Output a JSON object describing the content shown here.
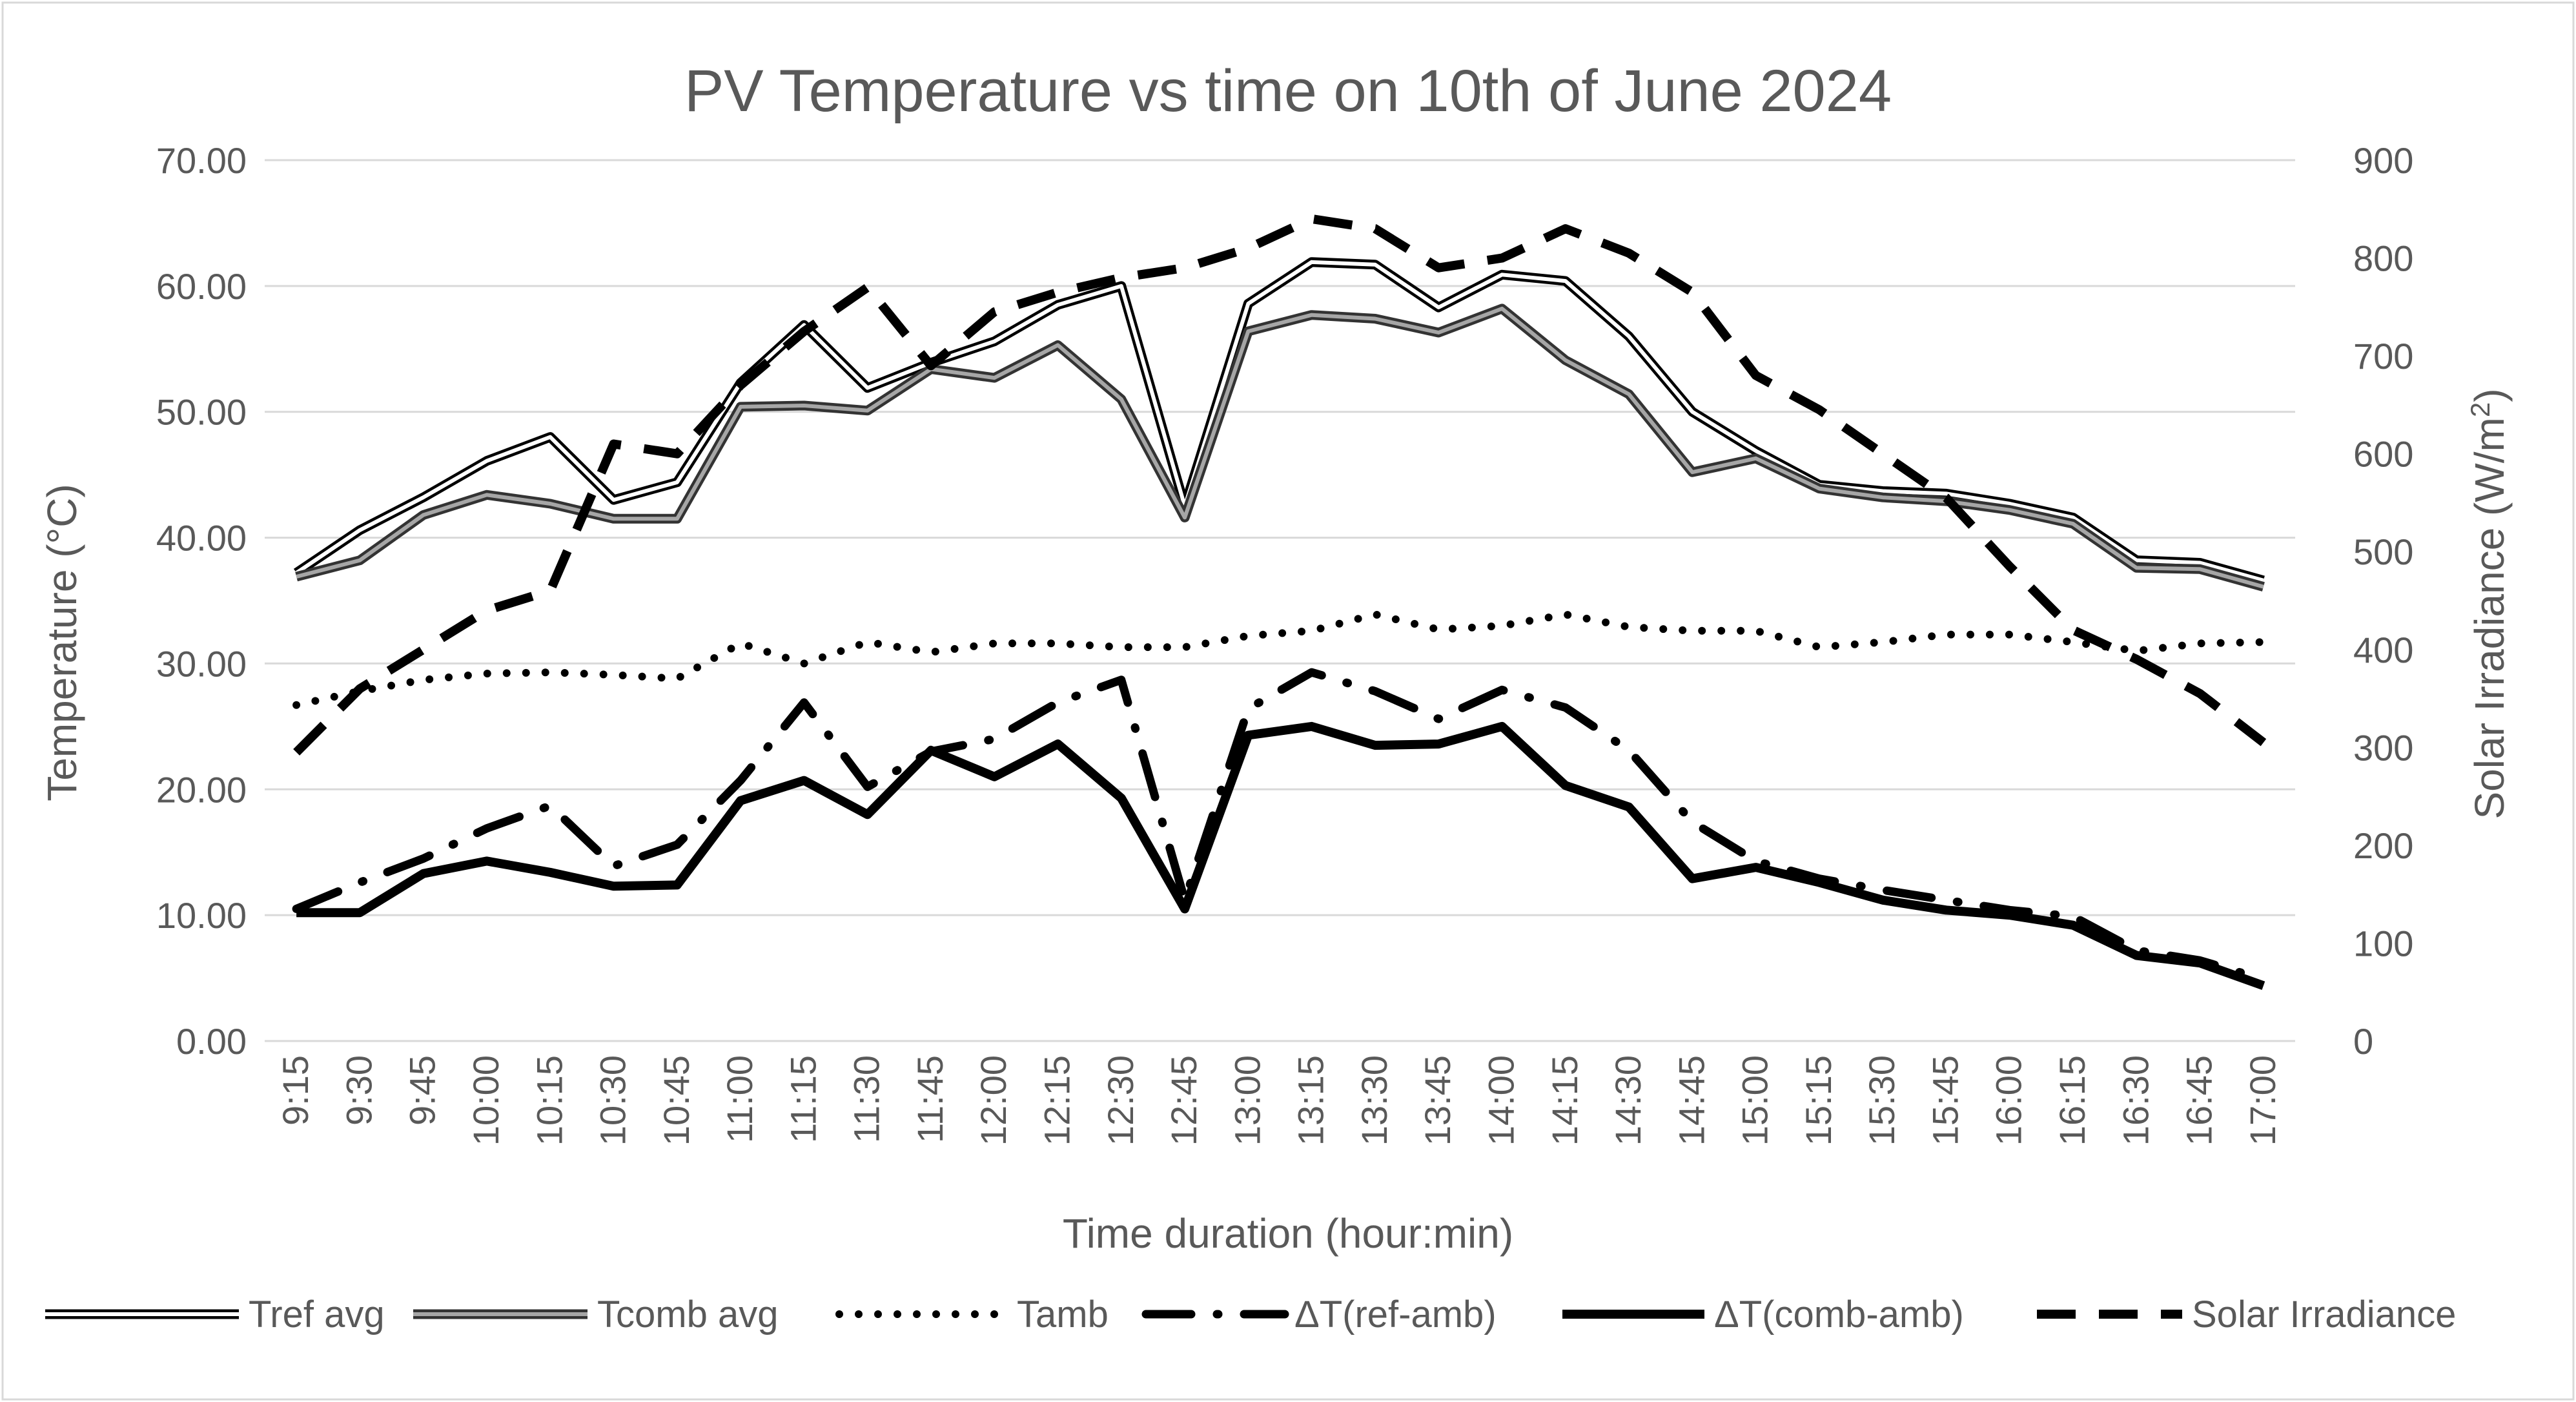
{
  "chart_data": {
    "type": "line",
    "title": "PV Temperature vs time on 10th of June 2024",
    "xlabel": "Time duration (hour:min)",
    "ylabel": "Temperature (°C)",
    "y2label_main": "Solar Irradiance (W/m",
    "y2label_sup": "2",
    "y2label_end": ")",
    "ylim": [
      0,
      70
    ],
    "y2lim": [
      0,
      900
    ],
    "yticks": [
      "0.00",
      "10.00",
      "20.00",
      "30.00",
      "40.00",
      "50.00",
      "60.00",
      "70.00"
    ],
    "y2ticks": [
      "0",
      "100",
      "200",
      "300",
      "400",
      "500",
      "600",
      "700",
      "800",
      "900"
    ],
    "grid": true,
    "legend_position": "bottom",
    "categories": [
      "9:15",
      "9:30",
      "9:45",
      "10:00",
      "10:15",
      "10:30",
      "10:45",
      "11:00",
      "11:15",
      "11:30",
      "11:45",
      "12:00",
      "12:15",
      "12:30",
      "12:45",
      "13:00",
      "13:15",
      "13:30",
      "13:45",
      "14:00",
      "14:15",
      "14:30",
      "14:45",
      "15:00",
      "15:15",
      "15:30",
      "15:45",
      "16:00",
      "16:15",
      "16:30",
      "16:45",
      "17:00"
    ],
    "series": [
      {
        "name": "Tref avg",
        "style": "double",
        "axis": "left",
        "values": [
          37.2,
          40.6,
          43.2,
          46.1,
          48.0,
          43.0,
          44.4,
          52.3,
          56.9,
          51.9,
          53.9,
          55.6,
          58.5,
          60.0,
          42.5,
          58.6,
          61.9,
          61.7,
          58.3,
          60.9,
          60.4,
          56.0,
          50.0,
          46.9,
          44.2,
          43.7,
          43.5,
          42.7,
          41.6,
          38.2,
          38.0,
          36.6
        ]
      },
      {
        "name": "Tcomb avg",
        "style": "double-gray",
        "axis": "left",
        "values": [
          36.9,
          38.2,
          41.8,
          43.4,
          42.7,
          41.5,
          41.5,
          50.4,
          50.5,
          50.1,
          53.4,
          52.7,
          55.3,
          51.0,
          41.6,
          56.4,
          57.7,
          57.4,
          56.3,
          58.2,
          54.1,
          51.4,
          45.2,
          46.3,
          43.9,
          43.2,
          42.9,
          42.2,
          41.1,
          37.6,
          37.5,
          36.1
        ]
      },
      {
        "name": "Tamb",
        "style": "dotted",
        "axis": "left",
        "values": [
          26.7,
          27.8,
          28.7,
          29.2,
          29.3,
          29.1,
          28.8,
          31.6,
          30.0,
          31.7,
          30.9,
          31.6,
          31.6,
          31.3,
          31.3,
          32.2,
          32.6,
          33.9,
          32.7,
          33.0,
          33.9,
          32.9,
          32.6,
          32.6,
          31.3,
          31.7,
          32.3,
          32.3,
          31.7,
          31.0,
          31.6,
          31.7
        ]
      },
      {
        "name": "ΔT(ref-amb)",
        "style": "dash-dot",
        "axis": "left",
        "values": [
          10.5,
          12.6,
          14.5,
          16.9,
          18.7,
          13.9,
          15.6,
          20.7,
          26.9,
          20.2,
          23.0,
          24.0,
          26.9,
          28.7,
          11.2,
          26.4,
          29.3,
          27.8,
          25.6,
          27.9,
          26.5,
          23.1,
          17.4,
          14.3,
          12.9,
          12.0,
          11.2,
          10.4,
          9.9,
          7.2,
          6.4,
          4.9
        ]
      },
      {
        "name": "ΔT(comb-amb)",
        "style": "solid",
        "axis": "left",
        "values": [
          10.2,
          10.2,
          13.3,
          14.3,
          13.4,
          12.3,
          12.4,
          19.1,
          20.7,
          18.0,
          23.1,
          21.0,
          23.6,
          19.3,
          10.5,
          24.3,
          25.0,
          23.5,
          23.6,
          25.0,
          20.3,
          18.6,
          12.9,
          13.8,
          12.6,
          11.2,
          10.4,
          10.0,
          9.2,
          6.8,
          6.2,
          4.4
        ]
      },
      {
        "name": "Solar Irradiance",
        "style": "dashed",
        "axis": "right",
        "values": [
          295,
          360,
          400,
          440,
          460,
          610,
          600,
          670,
          725,
          770,
          690,
          745,
          765,
          780,
          790,
          810,
          840,
          830,
          790,
          800,
          830,
          805,
          765,
          680,
          645,
          600,
          555,
          485,
          420,
          390,
          355,
          305
        ]
      }
    ]
  }
}
